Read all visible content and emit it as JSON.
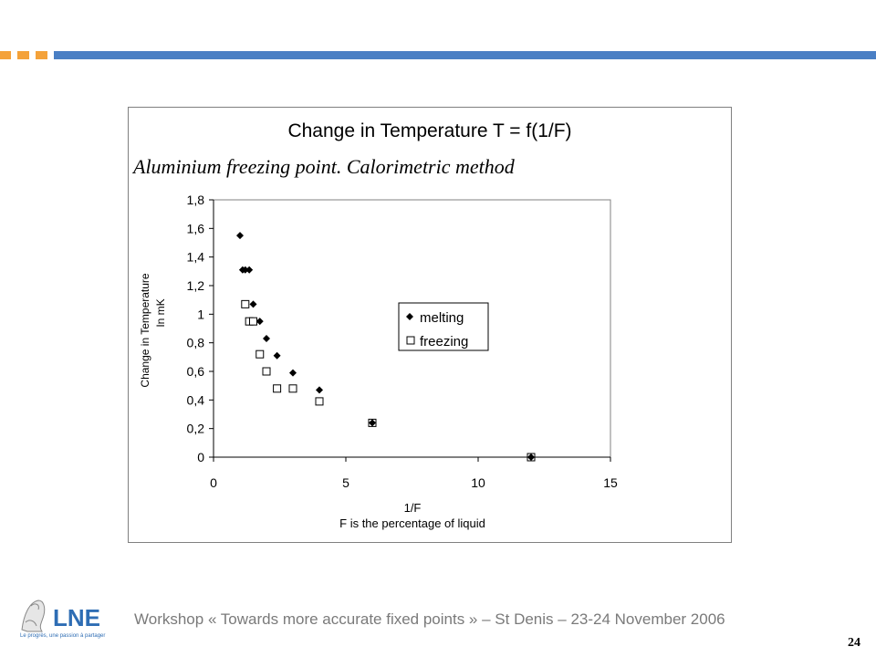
{
  "colors": {
    "accent_orange": "#f4a23a",
    "accent_blue": "#4a7fc4",
    "footer_text": "#7a7a7a"
  },
  "slide": {
    "footer": "Workshop « Towards more accurate fixed points » – St Denis – 23-24 November 2006",
    "page_number": "24"
  },
  "logo": {
    "text": "LNE",
    "tagline": "Le progrès, une passion à partager",
    "icon": "marianne-logo-icon"
  },
  "chart_data": {
    "type": "scatter",
    "title": "Change in Temperature T = f(1/F)",
    "subtitle": "Aluminium freezing point. Calorimetric method",
    "xlabel": "1/F",
    "xlabel_line2": "F is the percentage of liquid",
    "ylabel": "Change in Temperature",
    "ylabel_line2": "In mK",
    "xlim": [
      0,
      15
    ],
    "ylim": [
      0,
      1.8
    ],
    "xticks": [
      "0",
      "5",
      "10",
      "15"
    ],
    "yticks": [
      "0",
      "0,2",
      "0,4",
      "0,6",
      "0,8",
      "1",
      "1,2",
      "1,4",
      "1,6",
      "1,8"
    ],
    "grid": false,
    "legend_position": "right",
    "series": [
      {
        "name": "melting",
        "marker": "diamond",
        "color": "#000000",
        "points": [
          [
            1.0,
            1.55
          ],
          [
            1.1,
            1.31
          ],
          [
            1.2,
            1.31
          ],
          [
            1.35,
            1.31
          ],
          [
            1.5,
            1.07
          ],
          [
            1.75,
            0.95
          ],
          [
            2.0,
            0.83
          ],
          [
            2.4,
            0.71
          ],
          [
            3.0,
            0.59
          ],
          [
            4.0,
            0.47
          ],
          [
            6.0,
            0.24
          ],
          [
            12.0,
            0.0
          ]
        ]
      },
      {
        "name": "freezing",
        "marker": "square",
        "color": "#000000",
        "points": [
          [
            1.2,
            1.07
          ],
          [
            1.35,
            0.95
          ],
          [
            1.5,
            0.95
          ],
          [
            1.75,
            0.72
          ],
          [
            2.0,
            0.6
          ],
          [
            2.4,
            0.48
          ],
          [
            3.0,
            0.48
          ],
          [
            4.0,
            0.39
          ],
          [
            6.0,
            0.24
          ],
          [
            12.0,
            0.0
          ]
        ]
      }
    ]
  }
}
